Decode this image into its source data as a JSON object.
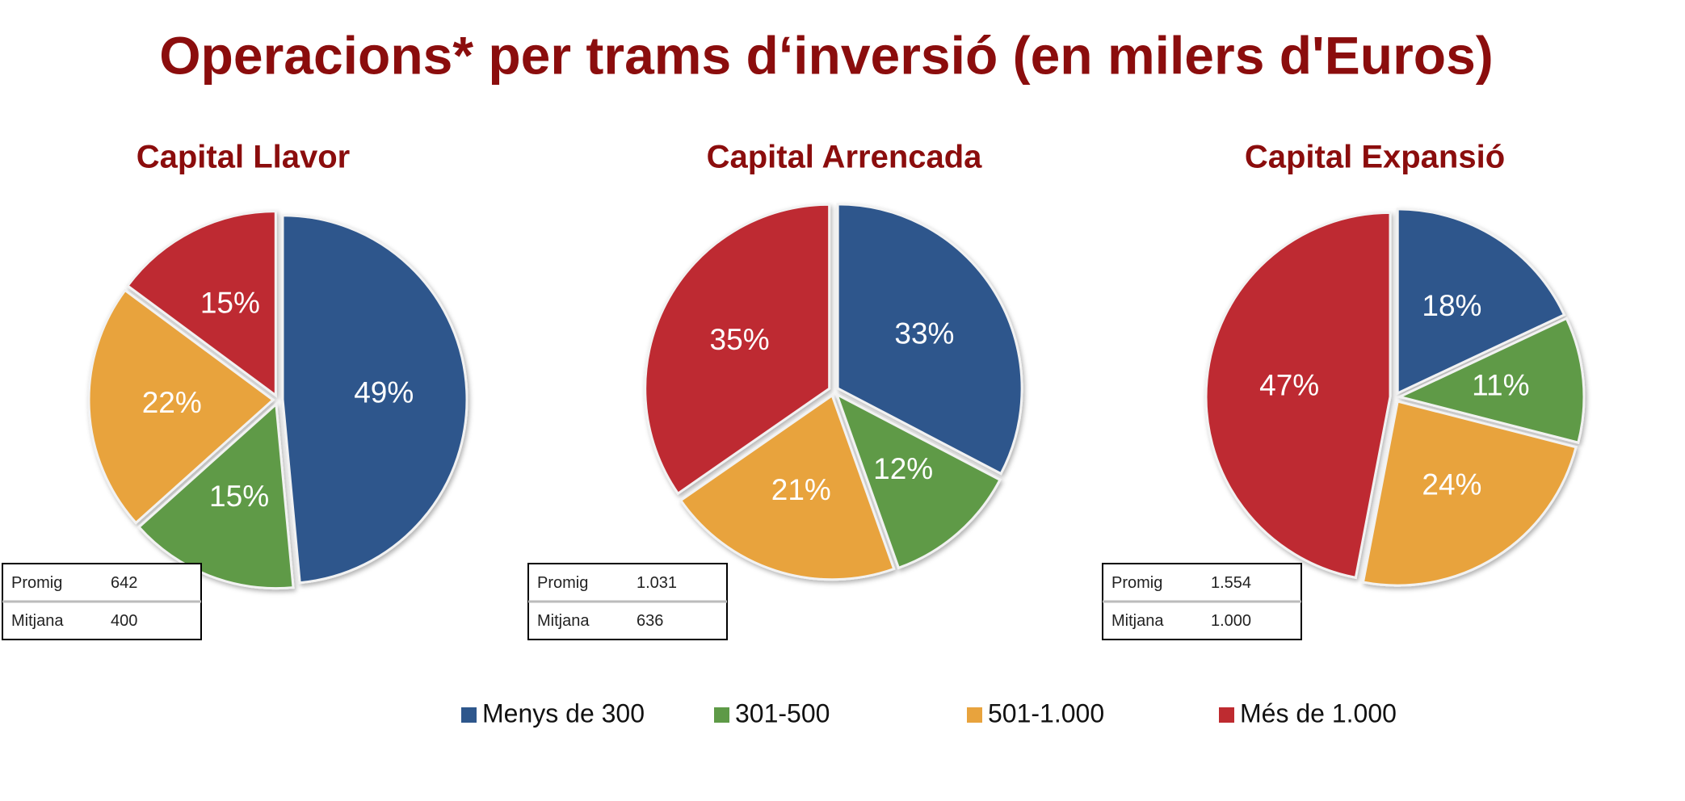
{
  "title": "Operacions* per trams d‘inversió (en milers d'Euros)",
  "chart_data": [
    {
      "type": "pie",
      "title": "Capital Llavor",
      "categories": [
        "Menys de 300",
        "301-500",
        "501-1.000",
        "Més de 1.000"
      ],
      "colors": [
        "#2e578c",
        "#5e9a47",
        "#e8a33d",
        "#be2b30"
      ],
      "values": [
        49,
        15,
        22,
        15
      ],
      "value_labels": [
        "49%",
        "15%",
        "22%",
        "15%"
      ],
      "table": {
        "rows": [
          [
            "Promig",
            "642"
          ],
          [
            "Mitjana",
            "400"
          ]
        ]
      }
    },
    {
      "type": "pie",
      "title": "Capital Arrencada",
      "categories": [
        "Menys de 300",
        "301-500",
        "501-1.000",
        "Més de 1.000"
      ],
      "colors": [
        "#2e578c",
        "#5e9a47",
        "#e8a33d",
        "#be2b30"
      ],
      "values": [
        33,
        12,
        21,
        35
      ],
      "value_labels": [
        "33%",
        "12%",
        "21%",
        "35%"
      ],
      "table": {
        "rows": [
          [
            "Promig",
            "1.031"
          ],
          [
            "Mitjana",
            "636"
          ]
        ]
      }
    },
    {
      "type": "pie",
      "title": "Capital Expansió",
      "categories": [
        "Menys de 300",
        "301-500",
        "501-1.000",
        "Més de 1.000"
      ],
      "colors": [
        "#2e578c",
        "#5e9a47",
        "#e8a33d",
        "#be2b30"
      ],
      "values": [
        18,
        11,
        24,
        47
      ],
      "value_labels": [
        "18%",
        "11%",
        "24%",
        "47%"
      ],
      "table": {
        "rows": [
          [
            "Promig",
            "1.554"
          ],
          [
            "Mitjana",
            "1.000"
          ]
        ]
      }
    }
  ]
}
